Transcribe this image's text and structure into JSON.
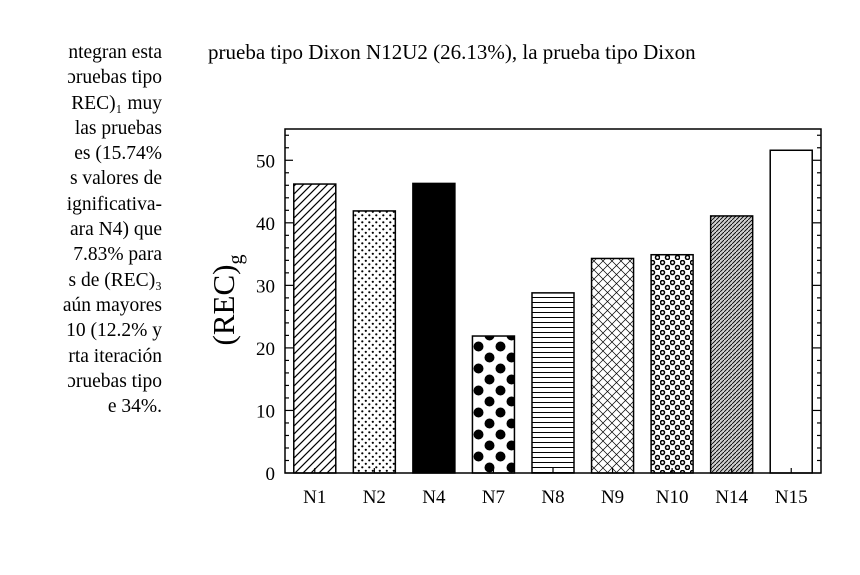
{
  "left_column": [
    "ntegran esta",
    "ɔruebas tipo",
    "REC)₁ muy",
    "las pruebas",
    "es (15.74%",
    "s valores de",
    "ignificativa-",
    "ara N4) que",
    "7.83% para",
    "s de (REC)₃",
    "aún mayores",
    "10 (12.2% y",
    "rta iteración",
    "ɔruebas tipo",
    "e 34%."
  ],
  "top_line": "prueba tipo Dixon N12U2 (26.13%), la prueba tipo Dixon",
  "chart_data": {
    "type": "bar",
    "title": "",
    "xlabel": "",
    "ylabel": "(REC)",
    "ylabel_subscript": "g",
    "categories": [
      "N1",
      "N2",
      "N4",
      "N7",
      "N8",
      "N9",
      "N10",
      "N14",
      "N15"
    ],
    "values": [
      46.2,
      41.9,
      46.3,
      21.9,
      28.8,
      34.3,
      34.9,
      41.1,
      51.6
    ],
    "patterns": [
      "diagonal-hatch",
      "dots-small",
      "solid-black",
      "dots-large",
      "horizontal-lines",
      "crosshatch",
      "rings",
      "dense-diagonal",
      "empty"
    ],
    "ylim": [
      0,
      55
    ],
    "yticks": [
      0,
      10,
      20,
      30,
      40,
      50
    ],
    "grid": false,
    "legend": "none"
  }
}
